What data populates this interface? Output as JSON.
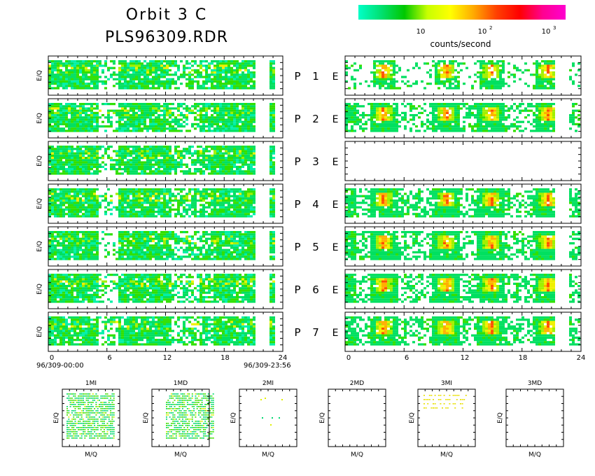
{
  "header": {
    "title_line1": "Orbit 3 C",
    "title_line2": "PLS96309.RDR"
  },
  "colorbar": {
    "label": "counts/second",
    "ticks": [
      {
        "base": "10",
        "exp": ""
      },
      {
        "base": "10",
        "exp": "2"
      },
      {
        "base": "10",
        "exp": "3"
      }
    ],
    "stops": [
      "#00ffc8",
      "#00e070",
      "#00c800",
      "#c8ff00",
      "#ffff00",
      "#ffaa00",
      "#ff4000",
      "#ff0000",
      "#ff0090",
      "#ff00d0"
    ]
  },
  "chart_data": {
    "type": "heatmap",
    "panel_rows": [
      {
        "label": "P",
        "number": "1",
        "right": "E"
      },
      {
        "label": "P",
        "number": "2",
        "right": "E"
      },
      {
        "label": "P",
        "number": "3",
        "right": "E"
      },
      {
        "label": "P",
        "number": "4",
        "right": "E"
      },
      {
        "label": "P",
        "number": "5",
        "right": "E"
      },
      {
        "label": "P",
        "number": "6",
        "right": "E"
      },
      {
        "label": "P",
        "number": "7",
        "right": "E"
      }
    ],
    "ylabel": "E/Q",
    "xticks": [
      "0",
      "6",
      "12",
      "18",
      "24"
    ],
    "xlim": [
      0,
      24
    ],
    "time_start": "96/309-00:00",
    "time_end": "96/309-23:56",
    "ion_gaps_hours": [
      [
        21.2,
        22.6
      ]
    ],
    "electron_gaps_hours": [
      [
        21.3,
        22.6
      ]
    ],
    "electron_empty_rows": [
      "3"
    ],
    "electron_hotspots_hours": [
      3.8,
      10.2,
      14.8,
      20.6
    ],
    "mass_panels": [
      {
        "title": "1MI",
        "xlabel": "M/Q",
        "ylabel": "E/Q",
        "has_data": true
      },
      {
        "title": "1MD",
        "xlabel": "M/Q",
        "ylabel": "E/Q",
        "has_data": true
      },
      {
        "title": "2MI",
        "xlabel": "M/Q",
        "ylabel": "E/Q",
        "has_data": true
      },
      {
        "title": "2MD",
        "xlabel": "M/Q",
        "ylabel": "E/Q",
        "has_data": false
      },
      {
        "title": "3MI",
        "xlabel": "M/Q",
        "ylabel": "E/Q",
        "has_data": true
      },
      {
        "title": "3MD",
        "xlabel": "M/Q",
        "ylabel": "E/Q",
        "has_data": false
      }
    ]
  }
}
